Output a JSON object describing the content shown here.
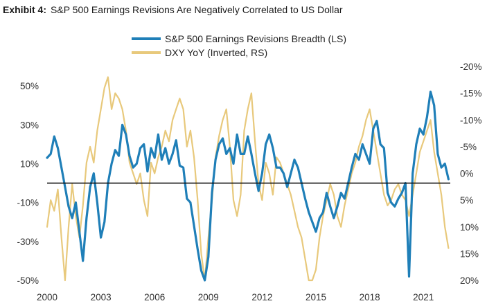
{
  "title": {
    "lead": "Exhibit 4:",
    "text": "S&P 500 Earnings Revisions Are Negatively Correlated to US Dollar"
  },
  "chart_data": {
    "type": "line",
    "xlim": [
      2000,
      2022.5
    ],
    "x_ticks": [
      2000,
      2003,
      2006,
      2009,
      2012,
      2015,
      2018,
      2021
    ],
    "x_tick_labels": [
      "2000",
      "2003",
      "2006",
      "2009",
      "2012",
      "2015",
      "2018",
      "2021"
    ],
    "left_axis": {
      "ylim": [
        -50,
        60
      ],
      "ticks": [
        -50,
        -30,
        -10,
        10,
        30,
        50
      ],
      "tick_labels": [
        "-50%",
        "-30%",
        "-10%",
        "10%",
        "30%",
        "50%"
      ]
    },
    "right_axis": {
      "inverted": true,
      "ylim": [
        20,
        -20
      ],
      "ticks": [
        20,
        15,
        10,
        5,
        0,
        -5,
        -10,
        -15,
        -20
      ],
      "tick_labels": [
        "20%",
        "15%",
        "10%",
        "5%",
        "0%",
        "-5%",
        "-10%",
        "-15%",
        "-20%"
      ]
    },
    "zero_line": 0,
    "legend_position": "top-center",
    "series": [
      {
        "name": "S&P 500 Earnings Revisions Breadth (LS)",
        "axis": "left",
        "color": "#1f7fb8",
        "x": [
          2000.0,
          2000.2,
          2000.4,
          2000.6,
          2000.8,
          2001.0,
          2001.2,
          2001.4,
          2001.6,
          2001.8,
          2002.0,
          2002.2,
          2002.4,
          2002.6,
          2002.8,
          2003.0,
          2003.2,
          2003.4,
          2003.6,
          2003.8,
          2004.0,
          2004.2,
          2004.4,
          2004.6,
          2004.8,
          2005.0,
          2005.2,
          2005.4,
          2005.6,
          2005.8,
          2006.0,
          2006.2,
          2006.4,
          2006.6,
          2006.8,
          2007.0,
          2007.2,
          2007.4,
          2007.6,
          2007.8,
          2008.0,
          2008.2,
          2008.4,
          2008.6,
          2008.8,
          2009.0,
          2009.2,
          2009.4,
          2009.6,
          2009.8,
          2010.0,
          2010.2,
          2010.4,
          2010.6,
          2010.8,
          2011.0,
          2011.2,
          2011.4,
          2011.6,
          2011.8,
          2012.0,
          2012.2,
          2012.4,
          2012.6,
          2012.8,
          2013.0,
          2013.2,
          2013.4,
          2013.6,
          2013.8,
          2014.0,
          2014.2,
          2014.4,
          2014.6,
          2014.8,
          2015.0,
          2015.2,
          2015.4,
          2015.6,
          2015.8,
          2016.0,
          2016.2,
          2016.4,
          2016.6,
          2016.8,
          2017.0,
          2017.2,
          2017.4,
          2017.6,
          2017.8,
          2018.0,
          2018.2,
          2018.4,
          2018.6,
          2018.8,
          2019.0,
          2019.2,
          2019.4,
          2019.6,
          2019.8,
          2020.0,
          2020.2,
          2020.4,
          2020.6,
          2020.8,
          2021.0,
          2021.2,
          2021.4,
          2021.6,
          2021.8,
          2022.0,
          2022.2,
          2022.4
        ],
        "y": [
          13,
          15,
          24,
          18,
          8,
          -2,
          -12,
          -18,
          -10,
          -25,
          -40,
          -18,
          -2,
          5,
          -10,
          -28,
          -20,
          0,
          10,
          17,
          14,
          30,
          25,
          14,
          8,
          10,
          18,
          20,
          6,
          18,
          13,
          25,
          12,
          18,
          10,
          15,
          22,
          9,
          8,
          -8,
          -10,
          -22,
          -34,
          -45,
          -50,
          -38,
          -5,
          12,
          20,
          23,
          15,
          18,
          10,
          25,
          15,
          15,
          24,
          15,
          5,
          -4,
          5,
          20,
          25,
          18,
          8,
          8,
          5,
          -2,
          5,
          12,
          8,
          0,
          -8,
          -15,
          -20,
          -25,
          -18,
          -15,
          -5,
          -12,
          -18,
          -12,
          -5,
          -8,
          0,
          8,
          15,
          12,
          20,
          15,
          10,
          28,
          32,
          20,
          18,
          -5,
          -10,
          -12,
          -8,
          -5,
          0,
          -48,
          5,
          20,
          28,
          25,
          34,
          47,
          40,
          15,
          8,
          10,
          2
        ]
      },
      {
        "name": "DXY YoY (Inverted, RS)",
        "axis": "right",
        "color": "#e8c97c",
        "x": [
          2000.0,
          2000.2,
          2000.4,
          2000.6,
          2000.8,
          2001.0,
          2001.2,
          2001.4,
          2001.6,
          2001.8,
          2002.0,
          2002.2,
          2002.4,
          2002.6,
          2002.8,
          2003.0,
          2003.2,
          2003.4,
          2003.6,
          2003.8,
          2004.0,
          2004.2,
          2004.4,
          2004.6,
          2004.8,
          2005.0,
          2005.2,
          2005.4,
          2005.6,
          2005.8,
          2006.0,
          2006.2,
          2006.4,
          2006.6,
          2006.8,
          2007.0,
          2007.2,
          2007.4,
          2007.6,
          2007.8,
          2008.0,
          2008.2,
          2008.4,
          2008.6,
          2008.8,
          2009.0,
          2009.2,
          2009.4,
          2009.6,
          2009.8,
          2010.0,
          2010.2,
          2010.4,
          2010.6,
          2010.8,
          2011.0,
          2011.2,
          2011.4,
          2011.6,
          2011.8,
          2012.0,
          2012.2,
          2012.4,
          2012.6,
          2012.8,
          2013.0,
          2013.2,
          2013.4,
          2013.6,
          2013.8,
          2014.0,
          2014.2,
          2014.4,
          2014.6,
          2014.8,
          2015.0,
          2015.2,
          2015.4,
          2015.6,
          2015.8,
          2016.0,
          2016.2,
          2016.4,
          2016.6,
          2016.8,
          2017.0,
          2017.2,
          2017.4,
          2017.6,
          2017.8,
          2018.0,
          2018.2,
          2018.4,
          2018.6,
          2018.8,
          2019.0,
          2019.2,
          2019.4,
          2019.6,
          2019.8,
          2020.0,
          2020.2,
          2020.4,
          2020.6,
          2020.8,
          2021.0,
          2021.2,
          2021.4,
          2021.6,
          2021.8,
          2022.0,
          2022.2,
          2022.4
        ],
        "y": [
          10,
          5,
          7,
          3,
          12,
          20,
          10,
          2,
          8,
          12,
          6,
          -2,
          -5,
          -2,
          -8,
          -12,
          -16,
          -18,
          -12,
          -15,
          -14,
          -12,
          -8,
          -2,
          0,
          2,
          0,
          5,
          8,
          -2,
          0,
          -3,
          -5,
          -8,
          -6,
          -10,
          -12,
          -14,
          -12,
          -5,
          -8,
          -3,
          5,
          15,
          20,
          12,
          5,
          -3,
          -7,
          -10,
          -12,
          -5,
          5,
          8,
          4,
          -8,
          -12,
          -15,
          -6,
          2,
          5,
          -2,
          0,
          4,
          -3,
          -2,
          0,
          2,
          4,
          7,
          10,
          12,
          16,
          20,
          20,
          18,
          12,
          8,
          5,
          2,
          4,
          8,
          10,
          6,
          3,
          0,
          -2,
          -5,
          -7,
          -10,
          -12,
          -8,
          -4,
          0,
          4,
          6,
          5,
          3,
          2,
          4,
          5,
          8,
          4,
          0,
          -4,
          -6,
          -8,
          -10,
          -4,
          0,
          4,
          10,
          14
        ]
      }
    ]
  }
}
